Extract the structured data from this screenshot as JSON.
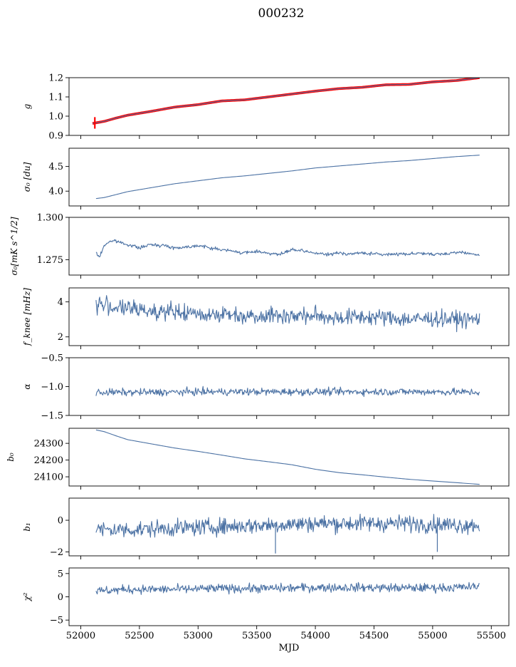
{
  "title": "000232",
  "chart_data": [
    {
      "type": "line",
      "ylabel": "g",
      "ylim": [
        0.9,
        1.2
      ],
      "yticks": [
        "0.9",
        "1.0",
        "1.1",
        "1.2"
      ],
      "xlim": [
        51900,
        55650
      ],
      "xticks": [
        "52000",
        "52500",
        "53000",
        "53500",
        "54000",
        "54500",
        "55000",
        "55500"
      ],
      "show_xticklabels": false,
      "series": [
        {
          "style": "red-thick",
          "color": "#ff0000",
          "x": [
            52100,
            52200,
            52300,
            52400,
            52600,
            52800,
            53000,
            53200,
            53400,
            53600,
            53800,
            54000,
            54200,
            54400,
            54600,
            54800,
            55000,
            55200,
            55400
          ],
          "y": [
            0.962,
            0.973,
            0.99,
            1.005,
            1.025,
            1.047,
            1.06,
            1.079,
            1.085,
            1.1,
            1.115,
            1.13,
            1.143,
            1.15,
            1.163,
            1.165,
            1.178,
            1.185,
            1.2
          ]
        },
        {
          "style": "line",
          "color": "#4c72a4",
          "x": [
            52100,
            52200,
            52300,
            52400,
            52600,
            52800,
            53000,
            53200,
            53400,
            53600,
            53800,
            54000,
            54200,
            54400,
            54600,
            54800,
            55000,
            55200,
            55400
          ],
          "y": [
            0.962,
            0.973,
            0.99,
            1.005,
            1.025,
            1.047,
            1.06,
            1.079,
            1.085,
            1.1,
            1.115,
            1.13,
            1.143,
            1.15,
            1.163,
            1.165,
            1.178,
            1.185,
            1.2
          ]
        }
      ],
      "errorbar": {
        "x": 52120,
        "y_low": 0.935,
        "y_high": 0.995,
        "color": "#ff0000"
      }
    },
    {
      "type": "line",
      "ylabel": "σ₀ [du]",
      "ylim": [
        3.7,
        4.87
      ],
      "yticks": [
        "4.0",
        "4.5"
      ],
      "xlim": [
        51900,
        55650
      ],
      "xticks": [
        "52000",
        "52500",
        "53000",
        "53500",
        "54000",
        "54500",
        "55000",
        "55500"
      ],
      "show_xticklabels": false,
      "series": [
        {
          "style": "line",
          "color": "#4c72a4",
          "x": [
            52130,
            52200,
            52300,
            52400,
            52600,
            52800,
            53000,
            53200,
            53400,
            53600,
            53800,
            54000,
            54200,
            54400,
            54600,
            54800,
            55000,
            55200,
            55400
          ],
          "y": [
            3.85,
            3.87,
            3.93,
            3.99,
            4.07,
            4.15,
            4.21,
            4.27,
            4.31,
            4.36,
            4.41,
            4.47,
            4.51,
            4.55,
            4.59,
            4.62,
            4.66,
            4.7,
            4.73
          ]
        }
      ]
    },
    {
      "type": "line",
      "ylabel": "σ₀[mK s^1/2]",
      "ylim": [
        1.266,
        1.3
      ],
      "yticks": [
        "1.275",
        "1.300"
      ],
      "xlim": [
        51900,
        55650
      ],
      "xticks": [
        "52000",
        "52500",
        "53000",
        "53500",
        "54000",
        "54500",
        "55000",
        "55500"
      ],
      "show_xticklabels": false,
      "series": [
        {
          "style": "noisy",
          "color": "#4c72a4",
          "x": [
            52130,
            52160,
            52200,
            52250,
            52300,
            52400,
            52500,
            52600,
            52700,
            52800,
            52900,
            53000,
            53100,
            53200,
            53300,
            53400,
            53500,
            53600,
            53700,
            53800,
            53900,
            54000,
            54100,
            54200,
            54300,
            54400,
            54500,
            54600,
            54700,
            54800,
            54900,
            55000,
            55100,
            55200,
            55300,
            55400
          ],
          "y": [
            1.279,
            1.2765,
            1.2835,
            1.286,
            1.286,
            1.284,
            1.282,
            1.284,
            1.2835,
            1.282,
            1.2825,
            1.2835,
            1.282,
            1.281,
            1.28,
            1.279,
            1.28,
            1.279,
            1.278,
            1.281,
            1.28,
            1.279,
            1.278,
            1.279,
            1.2785,
            1.279,
            1.2785,
            1.278,
            1.2785,
            1.2785,
            1.279,
            1.278,
            1.2785,
            1.2795,
            1.279,
            1.2775
          ],
          "noise": 0.0009
        }
      ]
    },
    {
      "type": "line",
      "ylabel": "f_knee [mHz]",
      "ylim": [
        1.5,
        4.8
      ],
      "yticks": [
        "2",
        "4"
      ],
      "xlim": [
        51900,
        55650
      ],
      "xticks": [
        "52000",
        "52500",
        "53000",
        "53500",
        "54000",
        "54500",
        "55000",
        "55500"
      ],
      "show_xticklabels": false,
      "series": [
        {
          "style": "noisy",
          "color": "#4c72a4",
          "x": [
            52130,
            52200,
            52300,
            52400,
            52600,
            52800,
            53000,
            53200,
            53400,
            53600,
            53800,
            54000,
            54200,
            54400,
            54600,
            54800,
            55000,
            55200,
            55400
          ],
          "y": [
            3.9,
            3.8,
            3.7,
            3.6,
            3.5,
            3.4,
            3.3,
            3.3,
            3.2,
            3.25,
            3.2,
            3.2,
            3.1,
            3.15,
            3.1,
            3.0,
            3.05,
            3.0,
            3.0
          ],
          "noise": 0.45
        }
      ]
    },
    {
      "type": "line",
      "ylabel": "α",
      "ylim": [
        -1.5,
        -0.5
      ],
      "yticks": [
        "−1.5",
        "−1.0",
        "−0.5"
      ],
      "xlim": [
        51900,
        55650
      ],
      "xticks": [
        "52000",
        "52500",
        "53000",
        "53500",
        "54000",
        "54500",
        "55000",
        "55500"
      ],
      "show_xticklabels": false,
      "series": [
        {
          "style": "noisy",
          "color": "#4c72a4",
          "x": [
            52130,
            52600,
            53000,
            53500,
            54000,
            54500,
            55000,
            55400
          ],
          "y": [
            -1.1,
            -1.1,
            -1.09,
            -1.09,
            -1.09,
            -1.09,
            -1.09,
            -1.1
          ],
          "noise": 0.06
        }
      ]
    },
    {
      "type": "line",
      "ylabel": "b₀",
      "ylim": [
        24045,
        24390
      ],
      "yticks": [
        "24100",
        "24200",
        "24300"
      ],
      "xlim": [
        51900,
        55650
      ],
      "xticks": [
        "52000",
        "52500",
        "53000",
        "53500",
        "54000",
        "54500",
        "55000",
        "55500"
      ],
      "show_xticklabels": false,
      "series": [
        {
          "style": "line",
          "color": "#4c72a4",
          "x": [
            52130,
            52200,
            52300,
            52400,
            52600,
            52800,
            53000,
            53200,
            53400,
            53600,
            53800,
            54000,
            54200,
            54400,
            54600,
            54800,
            55000,
            55200,
            55400
          ],
          "y": [
            24380,
            24370,
            24345,
            24322,
            24297,
            24272,
            24252,
            24230,
            24207,
            24190,
            24172,
            24145,
            24125,
            24112,
            24098,
            24085,
            24075,
            24065,
            24055
          ]
        }
      ]
    },
    {
      "type": "line",
      "ylabel": "b₁",
      "ylim": [
        -2.25,
        1.4
      ],
      "yticks": [
        "−2",
        "0"
      ],
      "xlim": [
        51900,
        55650
      ],
      "xticks": [
        "52000",
        "52500",
        "53000",
        "53500",
        "54000",
        "54500",
        "55000",
        "55500"
      ],
      "show_xticklabels": false,
      "series": [
        {
          "style": "noisy",
          "color": "#4c72a4",
          "x": [
            52130,
            52400,
            52800,
            53200,
            53600,
            54000,
            54400,
            54800,
            55200,
            55400
          ],
          "y": [
            -0.6,
            -0.6,
            -0.5,
            -0.4,
            -0.3,
            -0.2,
            -0.2,
            -0.2,
            -0.3,
            -0.3
          ],
          "noise": 0.5
        }
      ],
      "spikes": [
        {
          "x": 53660,
          "y": -2.1
        },
        {
          "x": 55040,
          "y": -2.0
        }
      ]
    },
    {
      "type": "line",
      "ylabel": "χ²",
      "ylim": [
        -6.2,
        6.2
      ],
      "yticks": [
        "−5",
        "0",
        "5"
      ],
      "xlim": [
        51900,
        55650
      ],
      "xticks": [
        "52000",
        "52500",
        "53000",
        "53500",
        "54000",
        "54500",
        "55000",
        "55500"
      ],
      "show_xticklabels": true,
      "xlabel": "MJD",
      "series": [
        {
          "style": "noisy",
          "color": "#4c72a4",
          "x": [
            52130,
            52400,
            52800,
            53200,
            53600,
            54000,
            54400,
            54800,
            55200,
            55400
          ],
          "y": [
            1.2,
            1.6,
            1.6,
            1.8,
            1.8,
            2.0,
            2.0,
            1.9,
            2.0,
            2.2
          ],
          "noise": 0.9
        }
      ]
    }
  ]
}
